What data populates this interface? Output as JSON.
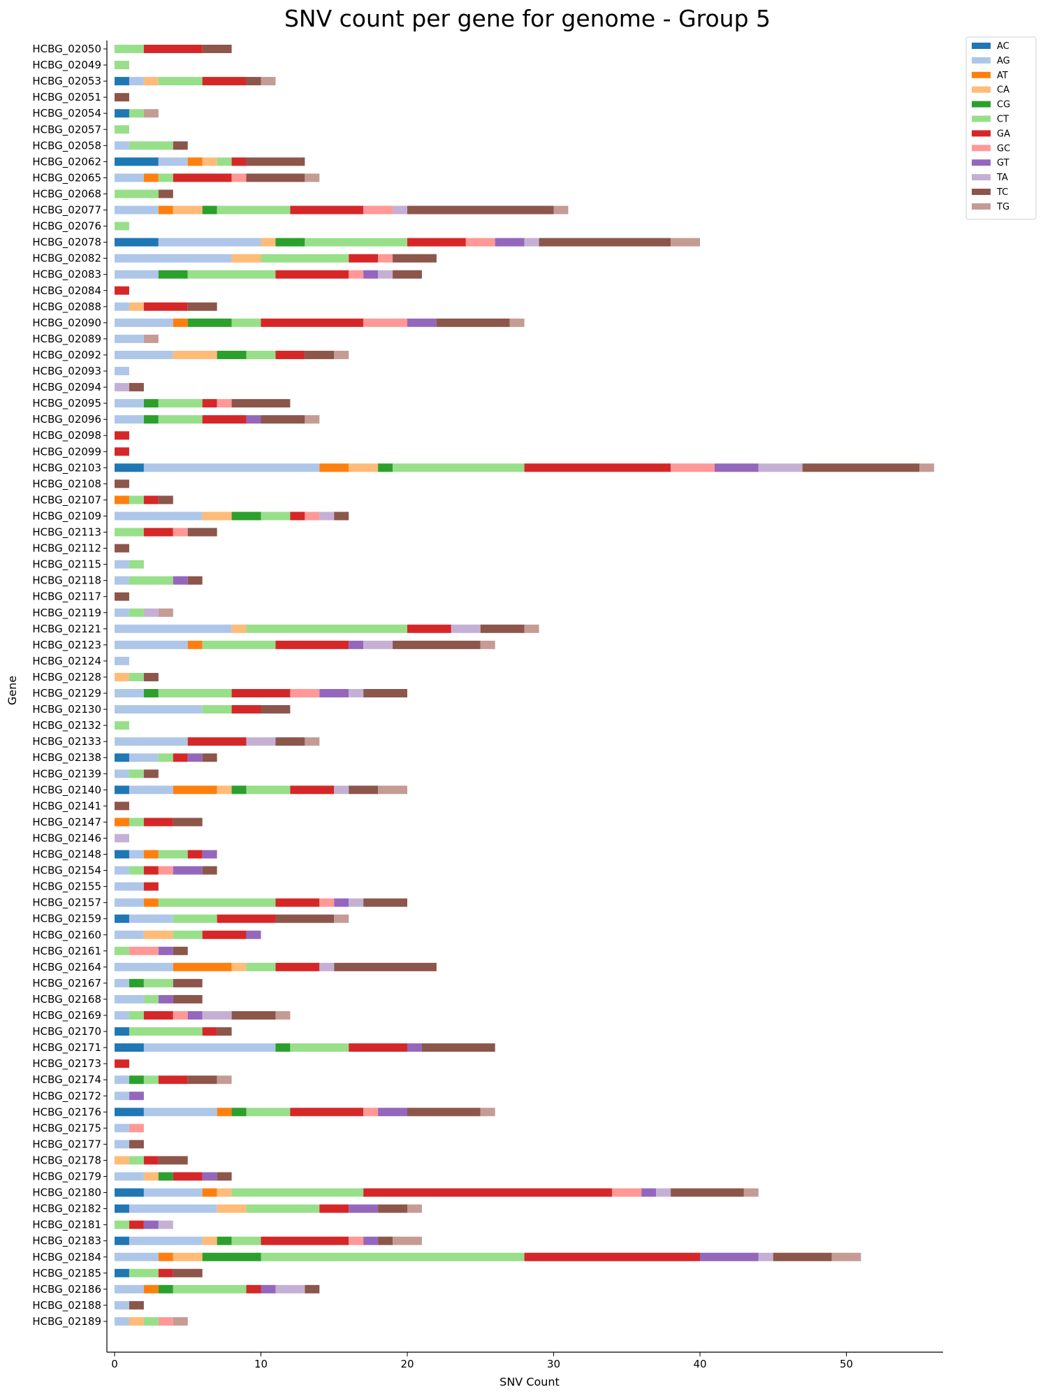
{
  "chart_data": {
    "type": "bar",
    "orientation": "horizontal",
    "stacked": true,
    "title": "SNV count per gene for genome - Group 5",
    "xlabel": "SNV Count",
    "ylabel": "Gene",
    "xlim": [
      0,
      56
    ],
    "xticks": [
      0,
      10,
      20,
      30,
      40,
      50
    ],
    "grid": false,
    "legend_position": "top-right",
    "colors": {
      "AC": "#1f77b4",
      "AG": "#aec7e8",
      "AT": "#ff7f0e",
      "CA": "#ffbb78",
      "CG": "#2ca02c",
      "CT": "#98df8a",
      "GA": "#d62728",
      "GC": "#ff9896",
      "GT": "#9467bd",
      "TA": "#c5b0d5",
      "TC": "#8c564b",
      "TG": "#c49c94"
    },
    "categories": [
      "HCBG_02050",
      "HCBG_02049",
      "HCBG_02053",
      "HCBG_02051",
      "HCBG_02054",
      "HCBG_02057",
      "HCBG_02058",
      "HCBG_02062",
      "HCBG_02065",
      "HCBG_02068",
      "HCBG_02077",
      "HCBG_02076",
      "HCBG_02078",
      "HCBG_02082",
      "HCBG_02083",
      "HCBG_02084",
      "HCBG_02088",
      "HCBG_02090",
      "HCBG_02089",
      "HCBG_02092",
      "HCBG_02093",
      "HCBG_02094",
      "HCBG_02095",
      "HCBG_02096",
      "HCBG_02098",
      "HCBG_02099",
      "HCBG_02103",
      "HCBG_02108",
      "HCBG_02107",
      "HCBG_02109",
      "HCBG_02113",
      "HCBG_02112",
      "HCBG_02115",
      "HCBG_02118",
      "HCBG_02117",
      "HCBG_02119",
      "HCBG_02121",
      "HCBG_02123",
      "HCBG_02124",
      "HCBG_02128",
      "HCBG_02129",
      "HCBG_02130",
      "HCBG_02132",
      "HCBG_02133",
      "HCBG_02138",
      "HCBG_02139",
      "HCBG_02140",
      "HCBG_02141",
      "HCBG_02147",
      "HCBG_02146",
      "HCBG_02148",
      "HCBG_02154",
      "HCBG_02155",
      "HCBG_02157",
      "HCBG_02159",
      "HCBG_02160",
      "HCBG_02161",
      "HCBG_02164",
      "HCBG_02167",
      "HCBG_02168",
      "HCBG_02169",
      "HCBG_02170",
      "HCBG_02171",
      "HCBG_02173",
      "HCBG_02174",
      "HCBG_02172",
      "HCBG_02176",
      "HCBG_02175",
      "HCBG_02177",
      "HCBG_02178",
      "HCBG_02179",
      "HCBG_02180",
      "HCBG_02182",
      "HCBG_02181",
      "HCBG_02183",
      "HCBG_02184",
      "HCBG_02185",
      "HCBG_02186",
      "HCBG_02188",
      "HCBG_02189"
    ],
    "series": [
      {
        "name": "AC",
        "values": [
          0,
          0,
          1,
          0,
          1,
          0,
          0,
          3,
          0,
          0,
          0,
          0,
          3,
          0,
          0,
          0,
          0,
          0,
          0,
          0,
          0,
          0,
          0,
          0,
          0,
          0,
          2,
          0,
          0,
          0,
          0,
          0,
          0,
          0,
          0,
          0,
          0,
          0,
          0,
          0,
          0,
          0,
          0,
          0,
          1,
          0,
          1,
          0,
          0,
          0,
          1,
          0,
          0,
          0,
          1,
          0,
          0,
          0,
          0,
          0,
          0,
          1,
          2,
          0,
          0,
          0,
          2,
          0,
          0,
          0,
          0,
          2,
          1,
          0,
          1,
          0,
          1,
          0,
          0,
          0
        ]
      },
      {
        "name": "AG",
        "values": [
          0,
          0,
          1,
          0,
          0,
          0,
          1,
          2,
          2,
          0,
          3,
          0,
          7,
          8,
          3,
          0,
          1,
          4,
          2,
          4,
          1,
          0,
          2,
          2,
          0,
          0,
          12,
          0,
          0,
          6,
          0,
          0,
          1,
          1,
          0,
          1,
          8,
          5,
          1,
          0,
          2,
          6,
          0,
          5,
          2,
          1,
          3,
          0,
          0,
          0,
          1,
          1,
          2,
          2,
          3,
          2,
          0,
          4,
          1,
          2,
          1,
          0,
          9,
          0,
          1,
          1,
          5,
          1,
          1,
          0,
          2,
          4,
          6,
          0,
          5,
          3,
          0,
          2,
          1,
          1
        ]
      },
      {
        "name": "AT",
        "values": [
          0,
          0,
          0,
          0,
          0,
          0,
          0,
          1,
          1,
          0,
          1,
          0,
          0,
          0,
          0,
          0,
          0,
          1,
          0,
          0,
          0,
          0,
          0,
          0,
          0,
          0,
          2,
          0,
          1,
          0,
          0,
          0,
          0,
          0,
          0,
          0,
          0,
          1,
          0,
          0,
          0,
          0,
          0,
          0,
          0,
          0,
          3,
          0,
          1,
          0,
          1,
          0,
          0,
          1,
          0,
          0,
          0,
          4,
          0,
          0,
          0,
          0,
          0,
          0,
          0,
          0,
          1,
          0,
          0,
          0,
          0,
          1,
          0,
          0,
          0,
          1,
          0,
          1,
          0,
          0
        ]
      },
      {
        "name": "CA",
        "values": [
          0,
          0,
          1,
          0,
          0,
          0,
          0,
          1,
          0,
          0,
          2,
          0,
          1,
          2,
          0,
          0,
          1,
          0,
          0,
          3,
          0,
          0,
          0,
          0,
          0,
          0,
          2,
          0,
          0,
          2,
          0,
          0,
          0,
          0,
          0,
          0,
          1,
          0,
          0,
          1,
          0,
          0,
          0,
          0,
          0,
          0,
          1,
          0,
          0,
          0,
          0,
          0,
          0,
          0,
          0,
          2,
          0,
          1,
          0,
          0,
          0,
          0,
          0,
          0,
          0,
          0,
          0,
          0,
          0,
          1,
          1,
          1,
          2,
          0,
          1,
          2,
          0,
          0,
          0,
          1
        ]
      },
      {
        "name": "CG",
        "values": [
          0,
          0,
          0,
          0,
          0,
          0,
          0,
          0,
          0,
          0,
          1,
          0,
          2,
          0,
          2,
          0,
          0,
          3,
          0,
          2,
          0,
          0,
          1,
          1,
          0,
          0,
          1,
          0,
          0,
          2,
          0,
          0,
          0,
          0,
          0,
          0,
          0,
          0,
          0,
          0,
          1,
          0,
          0,
          0,
          0,
          0,
          1,
          0,
          0,
          0,
          0,
          0,
          0,
          0,
          0,
          0,
          0,
          0,
          1,
          0,
          0,
          0,
          1,
          0,
          1,
          0,
          1,
          0,
          0,
          0,
          1,
          0,
          0,
          0,
          1,
          4,
          0,
          1,
          0,
          0
        ]
      },
      {
        "name": "CT",
        "values": [
          2,
          1,
          3,
          0,
          1,
          1,
          3,
          1,
          1,
          3,
          5,
          1,
          7,
          6,
          6,
          0,
          0,
          2,
          0,
          2,
          0,
          0,
          3,
          3,
          0,
          0,
          9,
          0,
          1,
          2,
          2,
          0,
          1,
          3,
          0,
          1,
          11,
          5,
          0,
          1,
          5,
          2,
          1,
          0,
          1,
          1,
          3,
          0,
          1,
          0,
          2,
          1,
          0,
          8,
          3,
          2,
          1,
          2,
          2,
          1,
          1,
          5,
          4,
          0,
          1,
          0,
          3,
          0,
          0,
          1,
          0,
          9,
          5,
          1,
          2,
          18,
          2,
          5,
          0,
          1
        ]
      },
      {
        "name": "GA",
        "values": [
          4,
          0,
          3,
          0,
          0,
          0,
          0,
          1,
          4,
          0,
          5,
          0,
          4,
          2,
          5,
          1,
          3,
          7,
          0,
          2,
          0,
          0,
          1,
          3,
          1,
          1,
          10,
          0,
          1,
          1,
          2,
          0,
          0,
          0,
          0,
          0,
          3,
          5,
          0,
          0,
          4,
          2,
          0,
          4,
          1,
          0,
          3,
          0,
          2,
          0,
          1,
          1,
          1,
          3,
          4,
          3,
          0,
          3,
          0,
          0,
          2,
          1,
          4,
          1,
          2,
          0,
          5,
          0,
          0,
          1,
          2,
          17,
          2,
          1,
          6,
          12,
          1,
          1,
          0,
          0
        ]
      },
      {
        "name": "GC",
        "values": [
          0,
          0,
          0,
          0,
          0,
          0,
          0,
          0,
          1,
          0,
          2,
          0,
          2,
          1,
          1,
          0,
          0,
          3,
          0,
          0,
          0,
          0,
          1,
          0,
          0,
          0,
          3,
          0,
          0,
          1,
          1,
          0,
          0,
          0,
          0,
          0,
          0,
          0,
          0,
          0,
          2,
          0,
          0,
          0,
          0,
          0,
          0,
          0,
          0,
          0,
          0,
          1,
          0,
          1,
          0,
          0,
          2,
          0,
          0,
          0,
          1,
          0,
          0,
          0,
          0,
          0,
          1,
          1,
          0,
          0,
          0,
          2,
          0,
          0,
          1,
          0,
          0,
          0,
          0,
          1
        ]
      },
      {
        "name": "GT",
        "values": [
          0,
          0,
          0,
          0,
          0,
          0,
          0,
          0,
          0,
          0,
          0,
          0,
          2,
          0,
          1,
          0,
          0,
          2,
          0,
          0,
          0,
          0,
          0,
          1,
          0,
          0,
          3,
          0,
          0,
          0,
          0,
          0,
          0,
          1,
          0,
          0,
          0,
          1,
          0,
          0,
          2,
          0,
          0,
          0,
          1,
          0,
          0,
          0,
          0,
          0,
          1,
          2,
          0,
          1,
          0,
          1,
          1,
          0,
          0,
          1,
          1,
          0,
          1,
          0,
          0,
          1,
          2,
          0,
          0,
          0,
          1,
          1,
          2,
          1,
          1,
          4,
          0,
          1,
          0,
          0
        ]
      },
      {
        "name": "TA",
        "values": [
          0,
          0,
          0,
          0,
          0,
          0,
          0,
          0,
          0,
          0,
          1,
          0,
          1,
          0,
          1,
          0,
          0,
          0,
          0,
          0,
          0,
          1,
          0,
          0,
          0,
          0,
          3,
          0,
          0,
          1,
          0,
          0,
          0,
          0,
          0,
          1,
          2,
          2,
          0,
          0,
          1,
          0,
          0,
          2,
          0,
          0,
          1,
          0,
          0,
          1,
          0,
          0,
          0,
          1,
          0,
          0,
          0,
          1,
          0,
          0,
          2,
          0,
          0,
          0,
          0,
          0,
          0,
          0,
          0,
          0,
          0,
          1,
          0,
          1,
          0,
          1,
          0,
          2,
          0,
          0
        ]
      },
      {
        "name": "TC",
        "values": [
          2,
          0,
          1,
          1,
          0,
          0,
          1,
          4,
          4,
          1,
          10,
          0,
          9,
          3,
          2,
          0,
          2,
          5,
          0,
          2,
          0,
          1,
          4,
          3,
          0,
          0,
          8,
          1,
          1,
          1,
          2,
          1,
          0,
          1,
          1,
          0,
          3,
          6,
          0,
          1,
          3,
          2,
          0,
          2,
          1,
          1,
          2,
          1,
          2,
          0,
          0,
          1,
          0,
          3,
          4,
          0,
          1,
          7,
          2,
          2,
          3,
          1,
          5,
          0,
          2,
          0,
          5,
          0,
          1,
          2,
          1,
          5,
          2,
          0,
          1,
          4,
          2,
          1,
          1,
          0
        ]
      },
      {
        "name": "TG",
        "values": [
          0,
          0,
          1,
          0,
          1,
          0,
          0,
          0,
          1,
          0,
          1,
          0,
          2,
          0,
          0,
          0,
          0,
          1,
          1,
          1,
          0,
          0,
          0,
          1,
          0,
          0,
          1,
          0,
          0,
          0,
          0,
          0,
          0,
          0,
          0,
          1,
          1,
          1,
          0,
          0,
          0,
          0,
          0,
          1,
          0,
          0,
          2,
          0,
          0,
          0,
          0,
          0,
          0,
          0,
          1,
          0,
          0,
          0,
          0,
          0,
          1,
          0,
          0,
          0,
          1,
          0,
          1,
          0,
          0,
          0,
          0,
          1,
          1,
          0,
          2,
          2,
          0,
          0,
          0,
          1
        ]
      }
    ]
  }
}
